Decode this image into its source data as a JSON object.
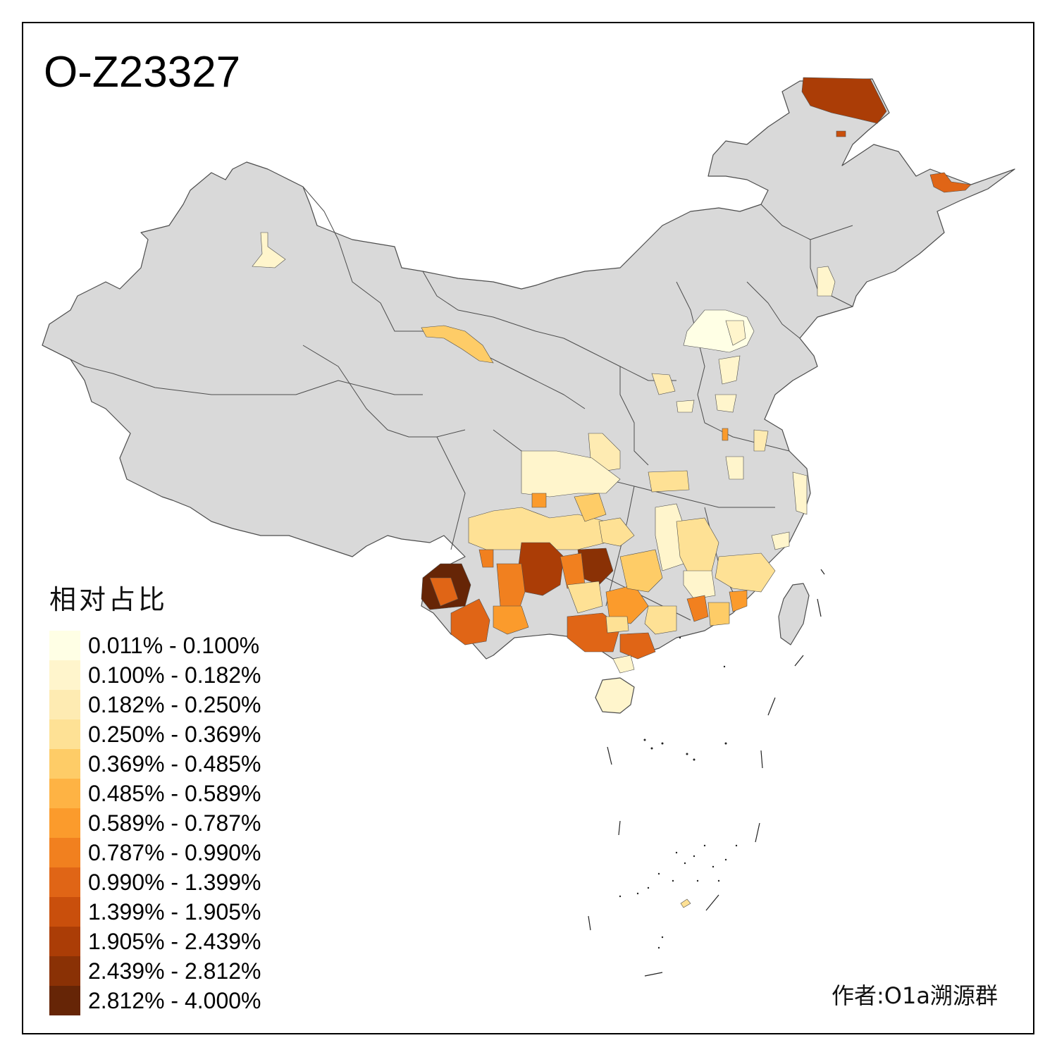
{
  "map": {
    "title": "O-Z23327",
    "legend_title": "相对占比",
    "author": "作者:O1a溯源群",
    "base_fill": "#d9d9d9",
    "border_color": "#4d4d4d",
    "legend": [
      {
        "label": "0.011% - 0.100%",
        "color": "#ffffe5"
      },
      {
        "label": "0.100% - 0.182%",
        "color": "#fff5cc"
      },
      {
        "label": "0.182% - 0.250%",
        "color": "#feebb2"
      },
      {
        "label": "0.250% - 0.369%",
        "color": "#fee195"
      },
      {
        "label": "0.369% - 0.485%",
        "color": "#fecc67"
      },
      {
        "label": "0.485% - 0.589%",
        "color": "#feb344"
      },
      {
        "label": "0.589% - 0.787%",
        "color": "#fb9b2c"
      },
      {
        "label": "0.787% - 0.990%",
        "color": "#f1801f"
      },
      {
        "label": "0.990% - 1.399%",
        "color": "#e06516"
      },
      {
        "label": "1.399% - 1.905%",
        "color": "#c94f0c"
      },
      {
        "label": "1.905% - 2.439%",
        "color": "#ab3d06"
      },
      {
        "label": "2.439% - 2.812%",
        "color": "#8a3105"
      },
      {
        "label": "2.812% - 4.000%",
        "color": "#662506"
      }
    ]
  }
}
